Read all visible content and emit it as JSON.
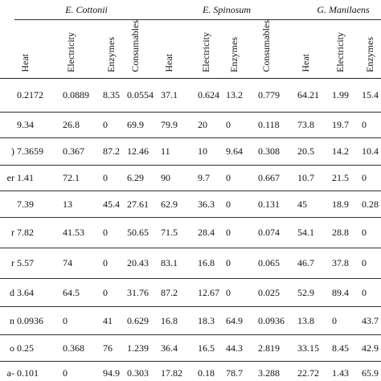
{
  "table": {
    "groups": [
      {
        "label": "E. Cottonii",
        "columns": [
          "Heat",
          "Electricity",
          "Enzymes",
          "Consumables"
        ]
      },
      {
        "label": "E. Spinosum",
        "columns": [
          "Heat",
          "Electricity",
          "Enzymes",
          "Consumables"
        ]
      },
      {
        "label": "G. Manilaens",
        "columns": [
          "Heat",
          "Electricity",
          "Enzymes"
        ]
      }
    ],
    "rows": [
      {
        "label": "",
        "cells": [
          "0.2172",
          "0.0889",
          "8.35",
          "0.0554",
          "37.1",
          "0.624",
          "13.2",
          "0.779",
          "64.21",
          "1.99",
          "15.4"
        ]
      },
      {
        "label": "",
        "cells": [
          "9.34",
          "26.8",
          "0",
          "69.9",
          "79.9",
          "20",
          "0",
          "0.118",
          "73.8",
          "19.7",
          "0"
        ]
      },
      {
        "label": ")",
        "cells": [
          "7.3659",
          "0.367",
          "87.2",
          "12.46",
          "11",
          "10",
          "9.64",
          "0.308",
          "20.5",
          "14.2",
          "10.4"
        ]
      },
      {
        "label": "er",
        "cells": [
          "1.41",
          "72.1",
          "0",
          "6.29",
          "90",
          "9.7",
          "0",
          "0.667",
          "10.7",
          "21.5",
          "0"
        ]
      },
      {
        "label": "",
        "cells": [
          "7.39",
          "13",
          "45.4",
          "27.61",
          "62.9",
          "36.3",
          "0",
          "0.131",
          "45",
          "18.9",
          "0.28"
        ]
      },
      {
        "label": "r",
        "cells": [
          "7.82",
          "41.53",
          "0",
          "50.65",
          "71.5",
          "28.4",
          "0",
          "0.074",
          "54.1",
          "28.8",
          "0"
        ]
      },
      {
        "label": "r",
        "cells": [
          "5.57",
          "74",
          "0",
          "20.43",
          "83.1",
          "16.8",
          "0",
          "0.065",
          "46.7",
          "37.8",
          "0"
        ]
      },
      {
        "label": "d",
        "cells": [
          "3.64",
          "64.5",
          "0",
          "31.76",
          "87.2",
          "12.67",
          "0",
          "0.025",
          "52.9",
          "89.4",
          "0"
        ]
      },
      {
        "label": "n",
        "cells": [
          "0.0936",
          "0",
          "41",
          "0.629",
          "16.8",
          "18.3",
          "64.9",
          "0.0936",
          "13.8",
          "0",
          "43.7"
        ]
      },
      {
        "label": "o",
        "cells": [
          "0.25",
          "0.368",
          "76",
          "1.239",
          "36.4",
          "16.5",
          "44.3",
          "2.819",
          "33.15",
          "8.45",
          "42.9"
        ]
      },
      {
        "label": "a-",
        "cells": [
          "0.101",
          "0",
          "94.9",
          "0.303",
          "17.82",
          "0.18",
          "78.7",
          "3.288",
          "22.72",
          "1.43",
          "65.9"
        ]
      }
    ]
  }
}
